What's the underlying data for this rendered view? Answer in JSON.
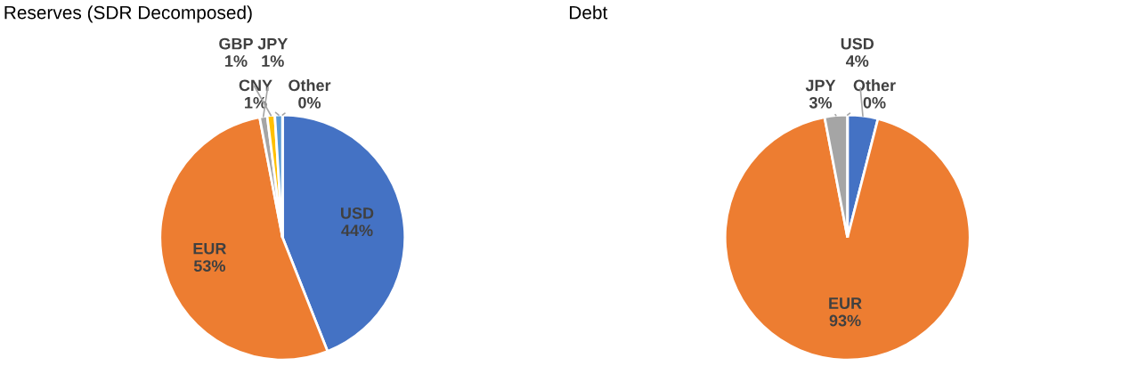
{
  "chart_data": [
    {
      "type": "pie",
      "title": "Reserves (SDR Decomposed)",
      "categories": [
        "USD",
        "EUR",
        "JPY",
        "GBP",
        "CNY",
        "Other"
      ],
      "values": [
        44,
        53,
        1,
        1,
        1,
        0
      ],
      "colors": [
        "#4472c4",
        "#ed7d31",
        "#a5a5a5",
        "#ffc000",
        "#5b9bd5",
        "#70ad47"
      ],
      "value_labels": [
        "44%",
        "53%",
        "1%",
        "1%",
        "1%",
        "0%"
      ],
      "legend": false
    },
    {
      "type": "pie",
      "title": "Debt",
      "categories": [
        "USD",
        "EUR",
        "JPY",
        "Other"
      ],
      "values": [
        4,
        93,
        3,
        0
      ],
      "colors": [
        "#4472c4",
        "#ed7d31",
        "#a5a5a5",
        "#70ad47"
      ],
      "value_labels": [
        "4%",
        "93%",
        "3%",
        "0%"
      ],
      "legend": false
    }
  ]
}
